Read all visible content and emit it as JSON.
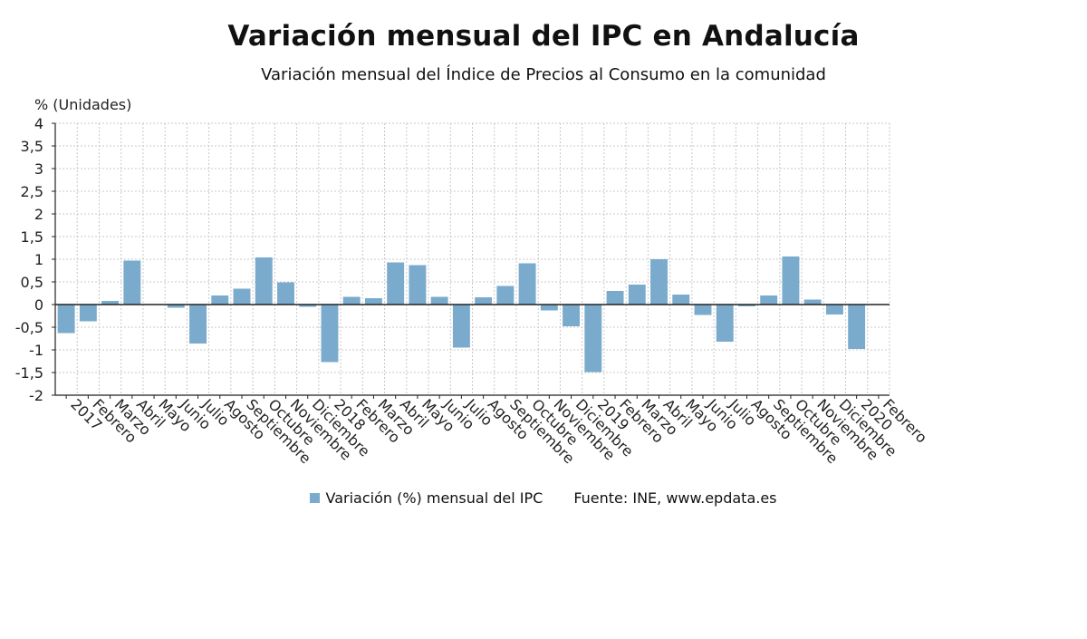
{
  "title": "Variación mensual del IPC en Andalucía",
  "subtitle": "Variación mensual del Índice de Precios al Consumo en la comunidad",
  "legend": {
    "series_label": "Variación (%) mensual del IPC",
    "source": "Fuente: INE, www.epdata.es"
  },
  "colors": {
    "bar": "#7aabcc",
    "grid": "#c8c8c8",
    "axis": "#222222"
  },
  "chart_data": {
    "type": "bar",
    "title": "Variación mensual del IPC en Andalucía",
    "subtitle": "Variación mensual del Índice de Precios al Consumo en la comunidad",
    "ylabel": "% (Unidades)",
    "xlabel": "",
    "ylim": [
      -2,
      4
    ],
    "yticks": [
      4,
      3.5,
      3,
      2.5,
      2,
      1.5,
      1,
      0.5,
      0,
      -0.5,
      -1,
      -1.5,
      -2
    ],
    "ytick_labels": [
      "4",
      "3,5",
      "3",
      "2,5",
      "2",
      "1,5",
      "1",
      "0,5",
      "0",
      "-0,5",
      "-1",
      "-1,5",
      "-2"
    ],
    "grid": true,
    "legend_position": "bottom",
    "categories": [
      "2017",
      "Febrero",
      "Marzo",
      "Abril",
      "Mayo",
      "Junio",
      "Julio",
      "Agosto",
      "Septiembre",
      "Octubre",
      "Noviembre",
      "Diciembre",
      "2018",
      "Febrero",
      "Marzo",
      "Abril",
      "Mayo",
      "Junio",
      "Julio",
      "Agosto",
      "Septiembre",
      "Octubre",
      "Noviembre",
      "Diciembre",
      "2019",
      "Febrero",
      "Marzo",
      "Abril",
      "Mayo",
      "Junio",
      "Julio",
      "Agosto",
      "Septiembre",
      "Octubre",
      "Noviembre",
      "Diciembre",
      "2020",
      "Febrero"
    ],
    "series": [
      {
        "name": "Variación (%) mensual del IPC",
        "values": [
          -0.63,
          -0.37,
          0.08,
          0.97,
          0.0,
          -0.07,
          -0.86,
          0.2,
          0.35,
          1.04,
          0.49,
          -0.05,
          -1.27,
          0.17,
          0.14,
          0.93,
          0.87,
          0.17,
          -0.95,
          0.16,
          0.41,
          0.91,
          -0.13,
          -0.48,
          -1.49,
          0.3,
          0.44,
          1.0,
          0.22,
          -0.23,
          -0.82,
          -0.04,
          0.2,
          1.06,
          0.11,
          -0.22,
          -0.98,
          -0.01
        ]
      }
    ]
  }
}
